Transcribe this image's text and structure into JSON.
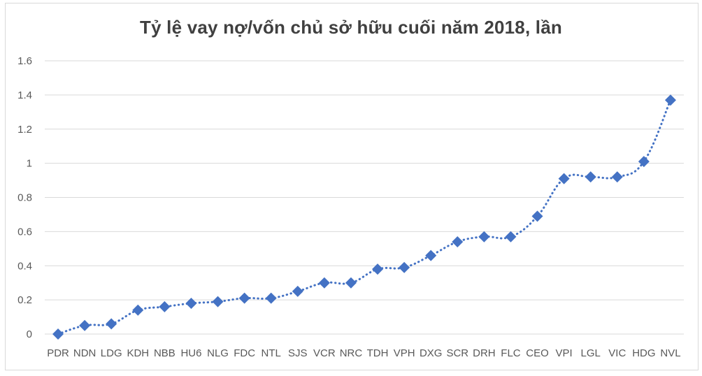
{
  "chart_data": {
    "type": "line",
    "title": "Tỷ lệ vay nợ/vốn chủ sở hữu cuối năm 2018, lần",
    "xlabel": "",
    "ylabel": "",
    "categories": [
      "PDR",
      "NDN",
      "LDG",
      "KDH",
      "NBB",
      "HU6",
      "NLG",
      "FDC",
      "NTL",
      "SJS",
      "VCR",
      "NRC",
      "TDH",
      "VPH",
      "DXG",
      "SCR",
      "DRH",
      "FLC",
      "CEO",
      "VPI",
      "LGL",
      "VIC",
      "HDG",
      "NVL"
    ],
    "series": [
      {
        "values": [
          0.0,
          0.05,
          0.06,
          0.14,
          0.16,
          0.18,
          0.19,
          0.21,
          0.21,
          0.25,
          0.3,
          0.3,
          0.38,
          0.39,
          0.46,
          0.54,
          0.57,
          0.57,
          0.69,
          0.91,
          0.92,
          0.92,
          1.01,
          1.37
        ],
        "color": "#4472c4",
        "marker": "diamond",
        "line_style": "dotted"
      }
    ],
    "ylim": [
      0,
      1.6
    ],
    "yticks": [
      "0",
      "0.2",
      "0.4",
      "0.6",
      "0.8",
      "1",
      "1.2",
      "1.4",
      "1.6"
    ],
    "grid": true,
    "legend": "none",
    "colors": {
      "series": "#4472c4",
      "grid": "#d9d9d9",
      "text": "#595959",
      "title": "#404040"
    }
  }
}
